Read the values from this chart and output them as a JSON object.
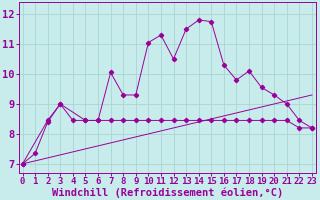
{
  "xlabel": "Windchill (Refroidissement éolien,°C)",
  "ylabel": "",
  "background_color": "#c8ecec",
  "grid_color": "#aad4d4",
  "line_color": "#990099",
  "x_ticks": [
    0,
    1,
    2,
    3,
    4,
    5,
    6,
    7,
    8,
    9,
    10,
    11,
    12,
    13,
    14,
    15,
    16,
    17,
    18,
    19,
    20,
    21,
    22,
    23
  ],
  "y_ticks": [
    7,
    8,
    9,
    10,
    11,
    12
  ],
  "xlim": [
    -0.3,
    23.3
  ],
  "ylim": [
    6.7,
    12.4
  ],
  "line1_x": [
    0,
    1,
    2,
    3,
    4,
    5,
    6,
    7,
    8,
    9,
    10,
    11,
    12,
    13,
    14,
    15,
    16,
    17,
    18,
    19,
    20,
    21,
    22,
    23
  ],
  "line1_y": [
    7.0,
    7.35,
    8.4,
    9.0,
    8.45,
    8.45,
    8.45,
    10.05,
    9.3,
    9.3,
    11.05,
    11.3,
    10.5,
    11.5,
    11.8,
    11.75,
    10.3,
    9.8,
    10.1,
    9.55,
    9.3,
    9.0,
    8.45,
    8.2
  ],
  "line2_x": [
    0,
    2,
    3,
    5,
    6,
    7,
    8,
    9,
    10,
    11,
    12,
    13,
    14,
    15,
    16,
    17,
    18,
    19,
    20,
    21,
    22,
    23
  ],
  "line2_y": [
    7.0,
    8.45,
    9.0,
    8.45,
    8.45,
    8.45,
    8.45,
    8.45,
    8.45,
    8.45,
    8.45,
    8.45,
    8.45,
    8.45,
    8.45,
    8.45,
    8.45,
    8.45,
    8.45,
    8.45,
    8.2,
    8.2
  ],
  "line3_x": [
    0,
    23
  ],
  "line3_y": [
    7.0,
    9.3
  ],
  "tick_fontsize": 6.5,
  "xlabel_fontsize": 7.5
}
